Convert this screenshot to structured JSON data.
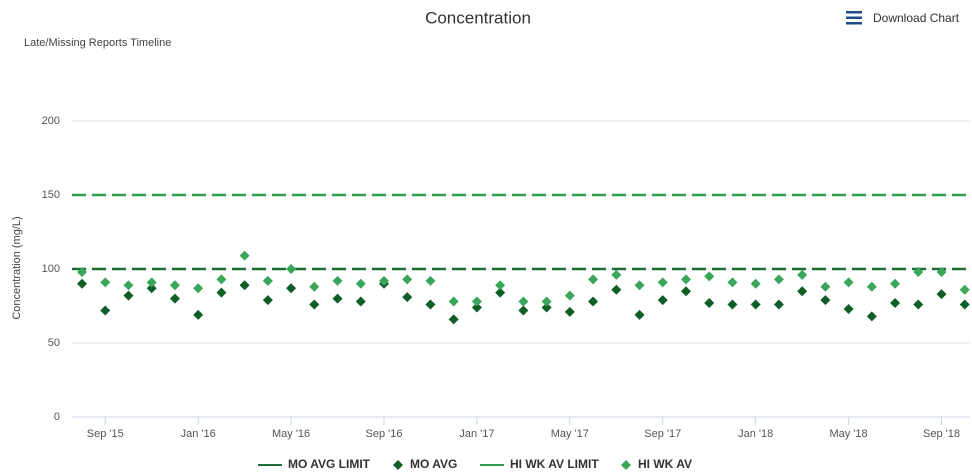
{
  "chart_data": {
    "type": "scatter",
    "title": "Concentration",
    "subtitle": "Late/Missing Reports Timeline",
    "y_label": "Concentration (mg/L)",
    "menu_label": "Download Chart",
    "categories": [
      null,
      "Sep '15",
      null,
      null,
      null,
      "Jan '16",
      null,
      null,
      null,
      "May '16",
      null,
      null,
      null,
      "Sep '16",
      null,
      null,
      null,
      "Jan '17",
      null,
      null,
      null,
      "May '17",
      null,
      null,
      null,
      "Sep '17",
      null,
      null,
      null,
      "Jan '18",
      null,
      null,
      null,
      "May '18",
      null,
      null,
      null,
      "Sep '18",
      null
    ],
    "ylim": [
      0,
      250
    ],
    "yticks": [
      0,
      50,
      100,
      150,
      200
    ],
    "grid": true,
    "legend": "bottom",
    "series": [
      {
        "name": "MO AVG LIMIT",
        "color": "#1d6b35",
        "value": 100
      },
      {
        "name": "MO AVG",
        "color": "#0e5e27",
        "values": [
          90,
          72,
          82,
          87,
          80,
          69,
          84,
          89,
          79,
          87,
          76,
          80,
          78,
          90,
          81,
          76,
          66,
          74,
          84,
          72,
          74,
          71,
          78,
          86,
          69,
          79,
          85,
          77,
          76,
          76,
          76,
          85,
          79,
          73,
          68,
          77,
          76,
          83,
          76
        ]
      },
      {
        "name": "HI WK AV LIMIT",
        "color": "#2f9e4f",
        "value": 150
      },
      {
        "name": "HI WK AV",
        "color": "#3aa65a",
        "values": [
          98,
          91,
          89,
          91,
          89,
          87,
          93,
          109,
          92,
          100,
          88,
          92,
          90,
          92,
          93,
          92,
          78,
          78,
          89,
          78,
          78,
          82,
          93,
          96,
          89,
          91,
          93,
          95,
          91,
          90,
          93,
          96,
          88,
          91,
          88,
          90,
          98,
          98,
          86
        ]
      }
    ]
  }
}
